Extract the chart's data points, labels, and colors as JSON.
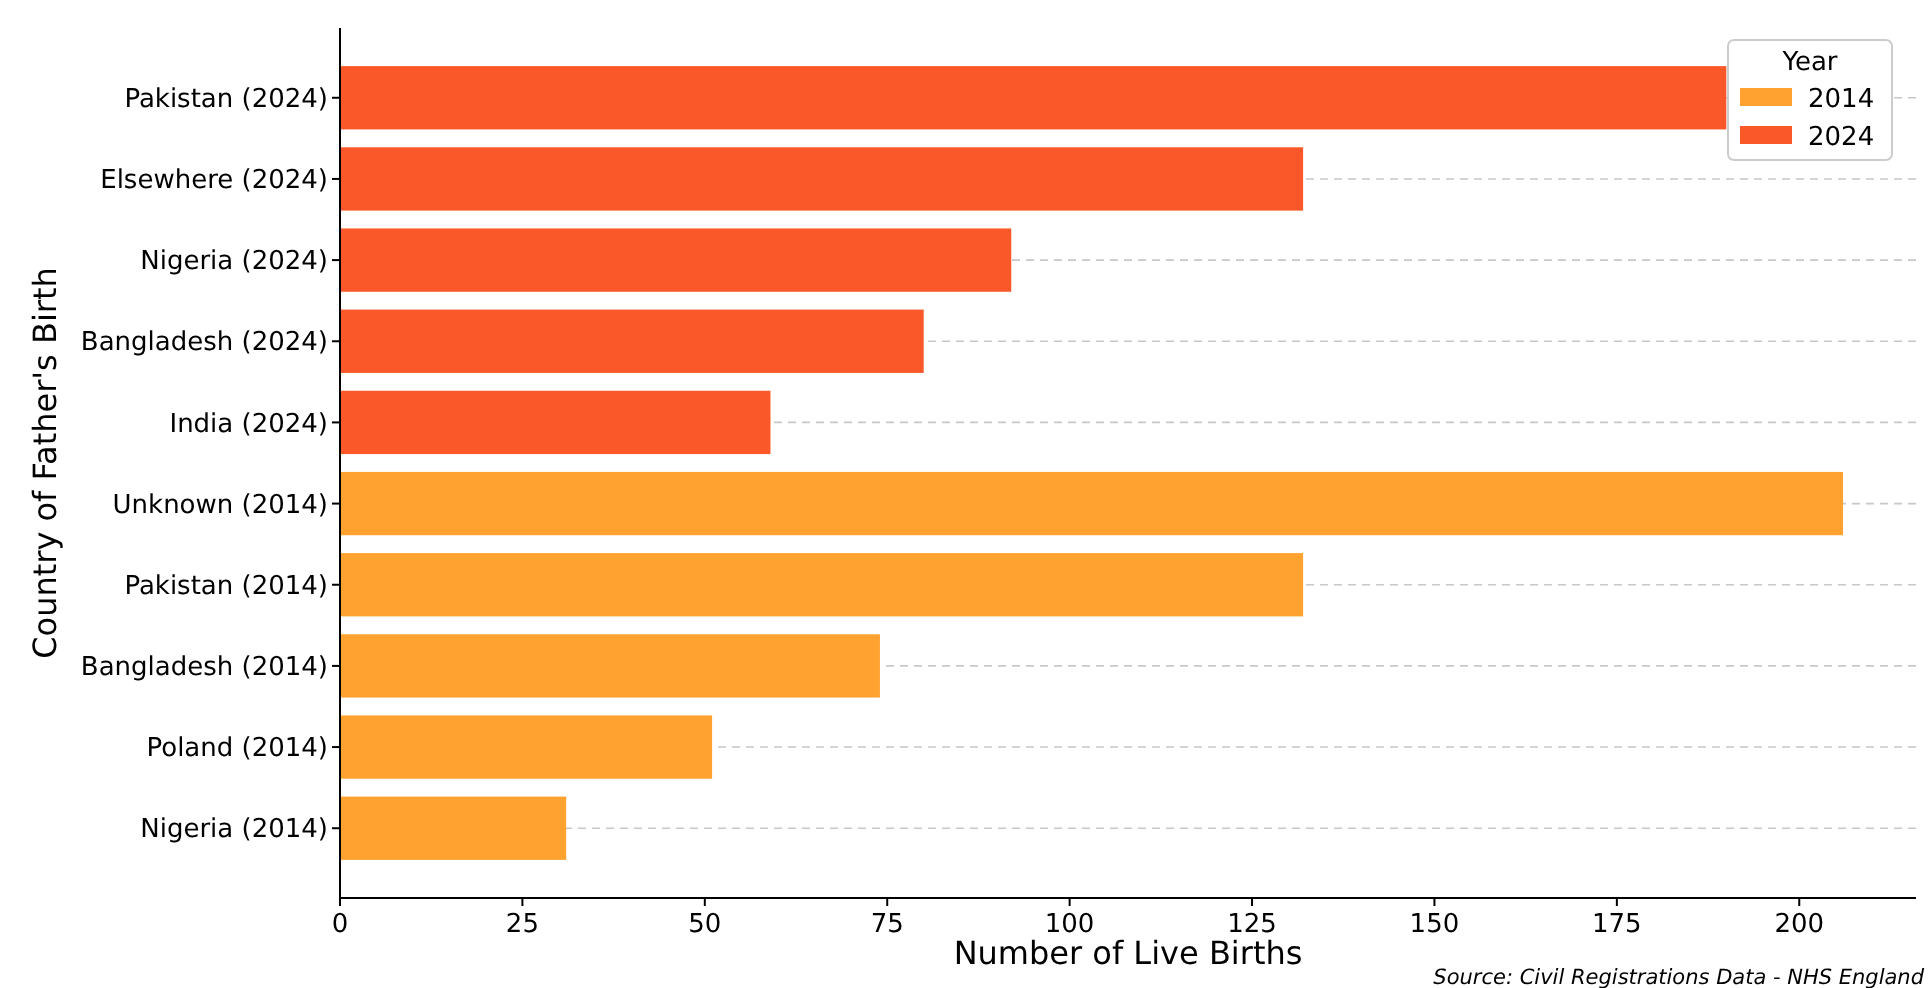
{
  "chart_data": {
    "type": "bar",
    "orientation": "horizontal",
    "xlabel": "Number of Live Births",
    "ylabel": "Country of Father's Birth",
    "legend_title": "Year",
    "categories": [
      "Pakistan (2024)",
      "Elsewhere (2024)",
      "Nigeria (2024)",
      "Bangladesh (2024)",
      "India (2024)",
      "Unknown (2014)",
      "Pakistan (2014)",
      "Bangladesh (2014)",
      "Poland (2014)",
      "Nigeria (2014)"
    ],
    "series": [
      {
        "name": "2014",
        "color": "#ffa22f",
        "values": [
          null,
          null,
          null,
          null,
          null,
          206,
          132,
          74,
          51,
          31
        ]
      },
      {
        "name": "2024",
        "color": "#fa5828",
        "values": [
          190,
          132,
          92,
          80,
          59,
          null,
          null,
          null,
          null,
          null
        ]
      }
    ],
    "xlim": [
      0,
      216
    ],
    "xticks": [
      0,
      25,
      50,
      75,
      100,
      125,
      150,
      175,
      200
    ],
    "grid": "y",
    "legend": "top right",
    "annotations": [
      "Source: Civil Registrations Data - NHS England"
    ]
  }
}
